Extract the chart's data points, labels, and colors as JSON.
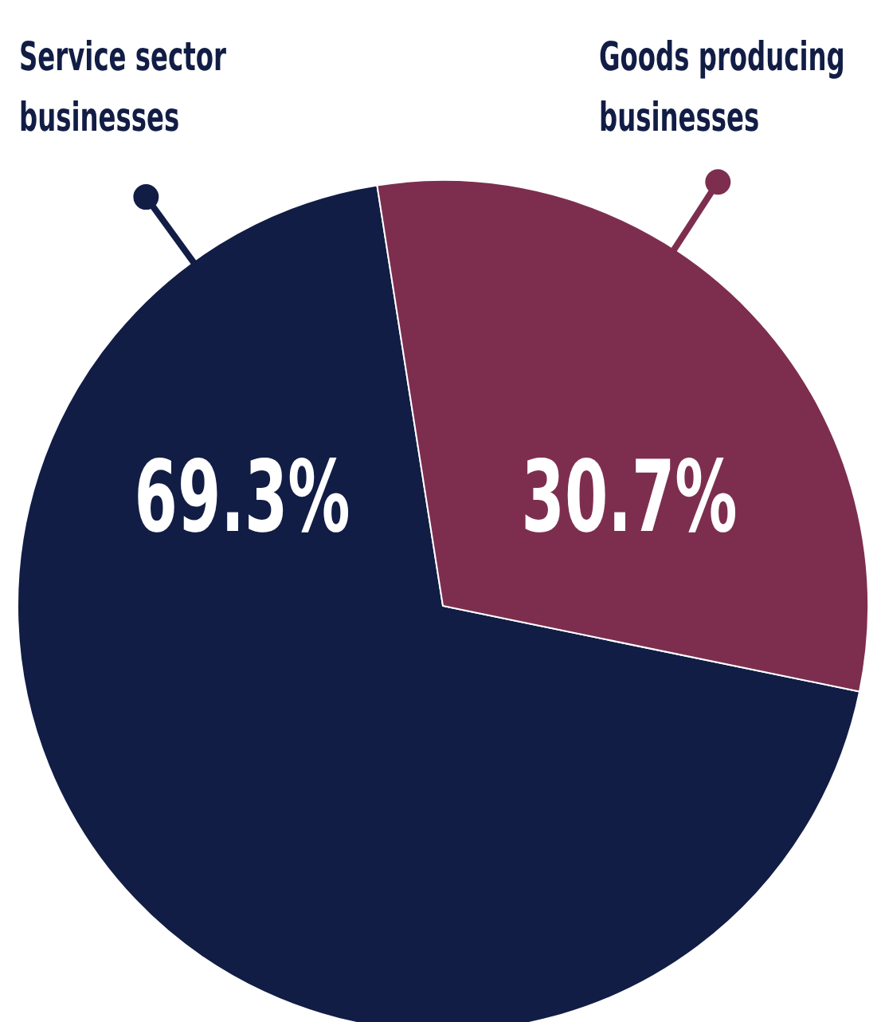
{
  "chart_data": {
    "type": "pie",
    "categories": [
      "Service sector businesses",
      "Goods producing businesses"
    ],
    "values": [
      69.3,
      30.7
    ],
    "colors": [
      "#111d45",
      "#7d2e4f"
    ],
    "value_labels": [
      "69.3%",
      "30.7%"
    ]
  }
}
